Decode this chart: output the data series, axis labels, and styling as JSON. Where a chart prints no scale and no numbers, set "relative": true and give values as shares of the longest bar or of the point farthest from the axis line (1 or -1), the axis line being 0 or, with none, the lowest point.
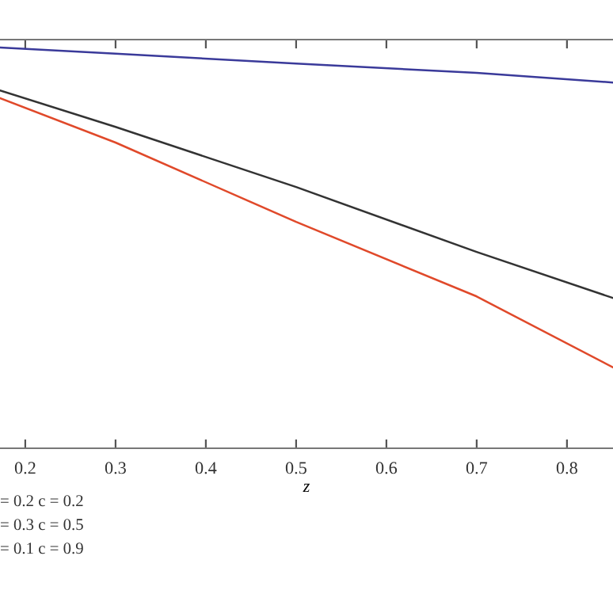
{
  "chart_data": {
    "type": "line",
    "relative": true,
    "xlabel": "z",
    "x": [
      0.172,
      0.3,
      0.5,
      0.7,
      0.851
    ],
    "xlim": [
      0.172,
      0.851
    ],
    "xticks": [
      0.2,
      0.3,
      0.4,
      0.5,
      0.6,
      0.7,
      0.8
    ],
    "series": [
      {
        "color": "#3a3a9a",
        "values": [
          1.0,
          0.985,
          0.96,
          0.937,
          0.913
        ]
      },
      {
        "color": "#333333",
        "values": [
          0.893,
          0.802,
          0.652,
          0.49,
          0.375
        ]
      },
      {
        "color": "#e0492a",
        "values": [
          0.874,
          0.763,
          0.565,
          0.379,
          0.202
        ]
      }
    ],
    "annotations": [
      "= 0.2 c = 0.2",
      "= 0.3 c = 0.5",
      "= 0.1 c = 0.9"
    ],
    "grid": false,
    "legend": false,
    "marker": "none",
    "line_style": "solid"
  }
}
